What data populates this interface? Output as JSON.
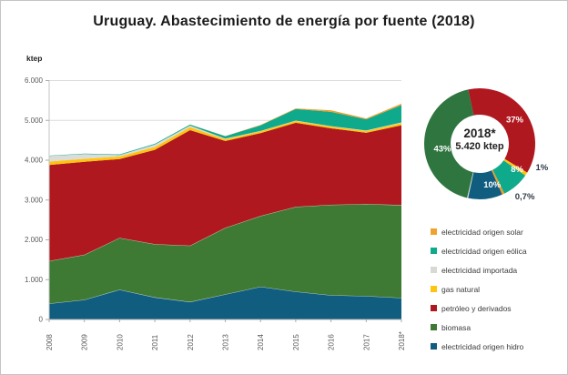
{
  "title": "Uruguay. Abastecimiento de energía por fuente (2018)",
  "chart_data": [
    {
      "type": "area",
      "subtype": "stacked",
      "ylabel": "ktep",
      "xlabel": "",
      "ylim": [
        0,
        6000
      ],
      "y_ticks": [
        "0",
        "1.000",
        "2.000",
        "3.000",
        "4.000",
        "5.000",
        "6.000"
      ],
      "grid": true,
      "x": [
        "2008",
        "2009",
        "2010",
        "2011",
        "2012",
        "2013",
        "2014",
        "2015",
        "2016",
        "2017",
        "2018*"
      ],
      "series": [
        {
          "name": "electricidad origen hidro",
          "color": "#105d80",
          "values": [
            400,
            495,
            750,
            556,
            442,
            632,
            824,
            700,
            610,
            590,
            542
          ]
        },
        {
          "name": "biomasa",
          "color": "#3e7a34",
          "values": [
            1070,
            1130,
            1300,
            1335,
            1413,
            1670,
            1776,
            2130,
            2270,
            2310,
            2331
          ]
        },
        {
          "name": "petróleo y derivados",
          "color": "#b0181f",
          "values": [
            2410,
            2335,
            1980,
            2370,
            2900,
            2180,
            2080,
            2110,
            1920,
            1790,
            2005
          ]
        },
        {
          "name": "gas natural",
          "color": "#ffc410",
          "values": [
            85,
            75,
            65,
            70,
            75,
            45,
            45,
            45,
            45,
            45,
            54
          ]
        },
        {
          "name": "electricidad importada",
          "color": "#dcdcd8",
          "values": [
            140,
            120,
            35,
            60,
            40,
            15,
            10,
            10,
            10,
            10,
            16
          ]
        },
        {
          "name": "electricidad origen eólica",
          "color": "#0fa98c",
          "values": [
            10,
            12,
            15,
            20,
            25,
            60,
            140,
            290,
            360,
            280,
            434
          ]
        },
        {
          "name": "electricidad origen solar",
          "color": "#f0a22e",
          "values": [
            0,
            0,
            0,
            0,
            3,
            5,
            10,
            15,
            40,
            25,
            38
          ]
        }
      ]
    },
    {
      "type": "pie",
      "subtype": "donut",
      "center_label": "2018*",
      "center_sublabel": "5.420 ktep",
      "slices": [
        {
          "name": "petróleo y derivados",
          "pct": 37,
          "label": "37%",
          "label_pos": "inside",
          "color": "#b0181f"
        },
        {
          "name": "gas natural",
          "pct": 1,
          "label": "1%",
          "label_pos": "outside",
          "color": "#ffc410"
        },
        {
          "name": "electricidad origen eólica",
          "pct": 8,
          "label": "8%",
          "label_pos": "inside",
          "color": "#0fa98c"
        },
        {
          "name": "electricidad origen solar",
          "pct": 0.7,
          "label": "0,7%",
          "label_pos": "outside",
          "color": "#ee9e2a"
        },
        {
          "name": "electricidad origen hidro",
          "pct": 10,
          "label": "10%",
          "label_pos": "inside",
          "color": "#105d80"
        },
        {
          "name": "electricidad importada",
          "pct": 0.3,
          "label": "",
          "label_pos": "none",
          "color": "#dcdcd8"
        },
        {
          "name": "biomasa",
          "pct": 43,
          "label": "43%",
          "label_pos": "inside",
          "color": "#2f7540"
        }
      ]
    }
  ],
  "legend": {
    "items": [
      {
        "label": "electricidad origen solar",
        "color": "#f0a22e"
      },
      {
        "label": "electricidad origen eólica",
        "color": "#0fa98c"
      },
      {
        "label": "electricidad importada",
        "color": "#d8d8d4"
      },
      {
        "label": "gas natural",
        "color": "#ffc410"
      },
      {
        "label": "petróleo y derivados",
        "color": "#b0181f"
      },
      {
        "label": "biomasa",
        "color": "#3e7a34"
      },
      {
        "label": "electricidad origen hidro",
        "color": "#105d80"
      }
    ]
  }
}
